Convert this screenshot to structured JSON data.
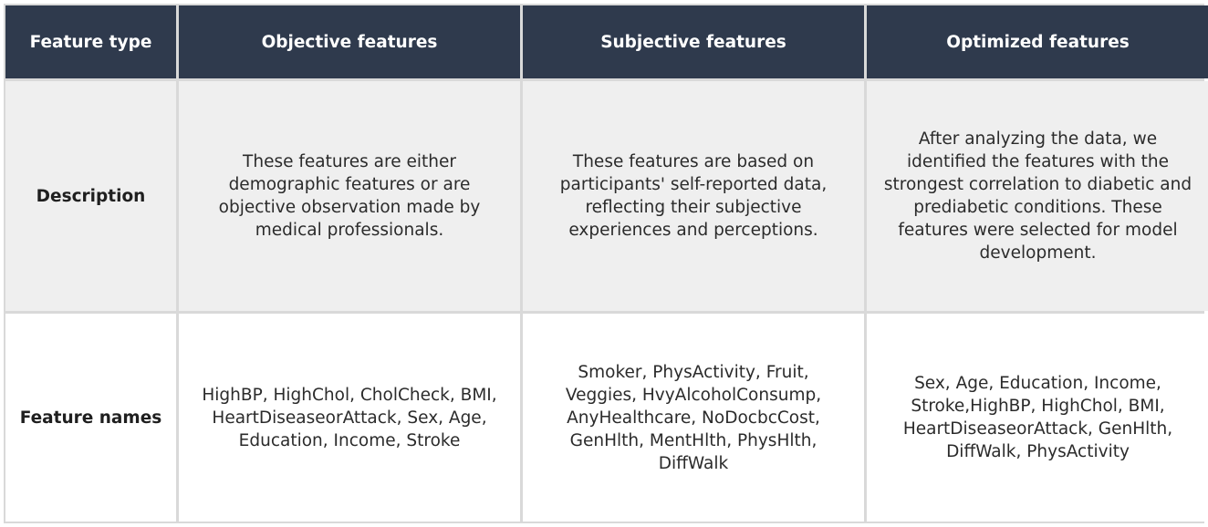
{
  "header": {
    "feature_type": "Feature type",
    "objective": "Objective features",
    "subjective": "Subjective features",
    "optimized": "Optimized features"
  },
  "description_row": {
    "label": "Description",
    "objective": "These features are either demographic features or are objective observation made by medical professionals.",
    "subjective": "These features are based on participants' self-reported data, reflecting their subjective experiences and perceptions.",
    "optimized": "After analyzing the data, we identified the features with the strongest correlation to diabetic and prediabetic conditions. These features were selected for model development."
  },
  "feature_names_row": {
    "label": "Feature names",
    "objective": "HighBP, HighChol, CholCheck, BMI, HeartDiseaseorAttack, Sex, Age, Education, Income, Stroke",
    "subjective": "Smoker, PhysActivity, Fruit, Veggies, HvyAlcoholConsump, AnyHealthcare, NoDocbcCost, GenHlth, MentHlth, PhysHlth, DiffWalk",
    "optimized": "Sex, Age, Education, Income, Stroke,HighBP, HighChol, BMI, HeartDiseaseorAttack, GenHlth, DiffWalk, PhysActivity"
  },
  "colors": {
    "header_bg": "#2f3a4d",
    "description_bg": "#efefef",
    "names_bg": "#ffffff",
    "grid_lines": "#d9d9d9"
  }
}
